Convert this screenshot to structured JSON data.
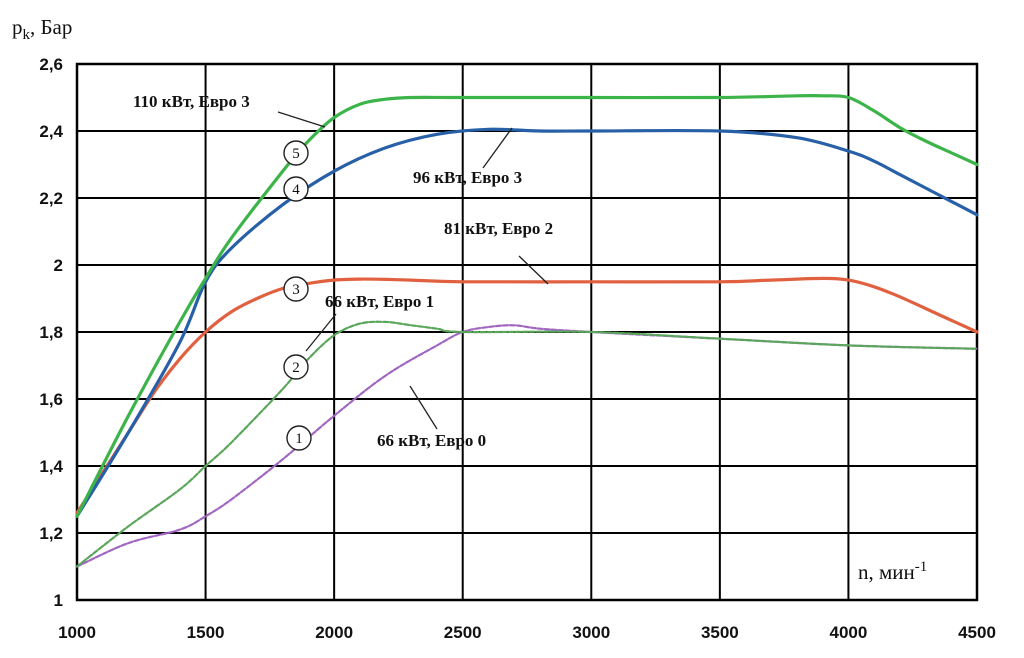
{
  "chart_data": {
    "type": "line",
    "title": "",
    "ylabel": "p",
    "ylabel_sub": "k",
    "ylabel_unit": ", Бар",
    "xlabel": "n, мин",
    "xlabel_sup": "-1",
    "xlim": [
      1000,
      4500
    ],
    "ylim": [
      1,
      2.6
    ],
    "x_ticks": [
      1000,
      1500,
      2000,
      2500,
      3000,
      3500,
      4000,
      4500
    ],
    "x_tick_labels": [
      "1000",
      "1500",
      "2000",
      "2500",
      "3000",
      "3500",
      "4000",
      "4500"
    ],
    "y_ticks": [
      1,
      1.2,
      1.4,
      1.6,
      1.8,
      2,
      2.2,
      2.4,
      2.6
    ],
    "y_tick_labels": [
      "1",
      "1,2",
      "1,4",
      "1,6",
      "1,8",
      "2",
      "2,2",
      "2,4",
      "2,6"
    ],
    "grid": true,
    "series": [
      {
        "id": "1",
        "name": "66 кВт, Евро 0",
        "color": "#a066c0",
        "x": [
          1000,
          1200,
          1400,
          1500,
          1600,
          1800,
          2000,
          2200,
          2400,
          2500,
          2600,
          2700,
          2800,
          3000,
          3500,
          4000,
          4500
        ],
        "values": [
          1.1,
          1.17,
          1.21,
          1.25,
          1.3,
          1.42,
          1.55,
          1.67,
          1.76,
          1.8,
          1.815,
          1.82,
          1.81,
          1.8,
          1.78,
          1.76,
          1.75
        ]
      },
      {
        "id": "2",
        "name": "66 кВт, Евро 1",
        "color": "#5aa65a",
        "x": [
          1000,
          1200,
          1400,
          1500,
          1600,
          1800,
          1900,
          2000,
          2100,
          2200,
          2300,
          2400,
          2500,
          3000,
          3500,
          4000,
          4500
        ],
        "values": [
          1.1,
          1.22,
          1.33,
          1.4,
          1.47,
          1.63,
          1.72,
          1.79,
          1.825,
          1.83,
          1.82,
          1.81,
          1.8,
          1.8,
          1.78,
          1.76,
          1.75
        ]
      },
      {
        "id": "3",
        "name": "81 кВт, Евро 2",
        "color": "#e06040",
        "x": [
          1000,
          1100,
          1200,
          1300,
          1400,
          1500,
          1600,
          1700,
          1800,
          1900,
          2000,
          2100,
          2200,
          2300,
          2500,
          3000,
          3500,
          3700,
          3900,
          4000,
          4100,
          4200,
          4300,
          4400,
          4500
        ],
        "values": [
          1.26,
          1.38,
          1.5,
          1.62,
          1.72,
          1.8,
          1.86,
          1.9,
          1.93,
          1.945,
          1.955,
          1.958,
          1.957,
          1.955,
          1.95,
          1.95,
          1.95,
          1.955,
          1.96,
          1.955,
          1.935,
          1.905,
          1.87,
          1.835,
          1.8
        ]
      },
      {
        "id": "4",
        "name": "96 кВт, Евро 3",
        "color": "#2860a8",
        "x": [
          1000,
          1200,
          1400,
          1500,
          1600,
          1800,
          2000,
          2200,
          2400,
          2600,
          2800,
          3000,
          3500,
          3800,
          4000,
          4100,
          4200,
          4300,
          4400,
          4500
        ],
        "values": [
          1.25,
          1.5,
          1.77,
          1.95,
          2.05,
          2.18,
          2.28,
          2.35,
          2.39,
          2.405,
          2.4,
          2.4,
          2.4,
          2.38,
          2.34,
          2.31,
          2.27,
          2.23,
          2.19,
          2.15
        ]
      },
      {
        "id": "5",
        "name": "110 кВт, Евро 3",
        "color": "#3cb44a",
        "x": [
          1000,
          1200,
          1400,
          1500,
          1600,
          1800,
          1900,
          2000,
          2100,
          2200,
          2300,
          2500,
          3000,
          3500,
          3800,
          3900,
          4000,
          4100,
          4200,
          4300,
          4400,
          4500
        ],
        "values": [
          1.25,
          1.55,
          1.83,
          1.96,
          2.08,
          2.28,
          2.37,
          2.44,
          2.48,
          2.495,
          2.5,
          2.5,
          2.5,
          2.5,
          2.505,
          2.505,
          2.5,
          2.46,
          2.41,
          2.37,
          2.335,
          2.3
        ]
      }
    ],
    "annotations": [
      {
        "text": "110 кВт, Евро 3",
        "series": "5",
        "marker": "5"
      },
      {
        "text": "96 кВт, Евро 3",
        "series": "4",
        "marker": "4"
      },
      {
        "text": "81 кВт, Евро 2",
        "series": "3",
        "marker": "3"
      },
      {
        "text": "66 кВт, Евро 1",
        "series": "2",
        "marker": "2"
      },
      {
        "text": "66 кВт, Евро 0",
        "series": "1",
        "marker": "1"
      }
    ]
  }
}
